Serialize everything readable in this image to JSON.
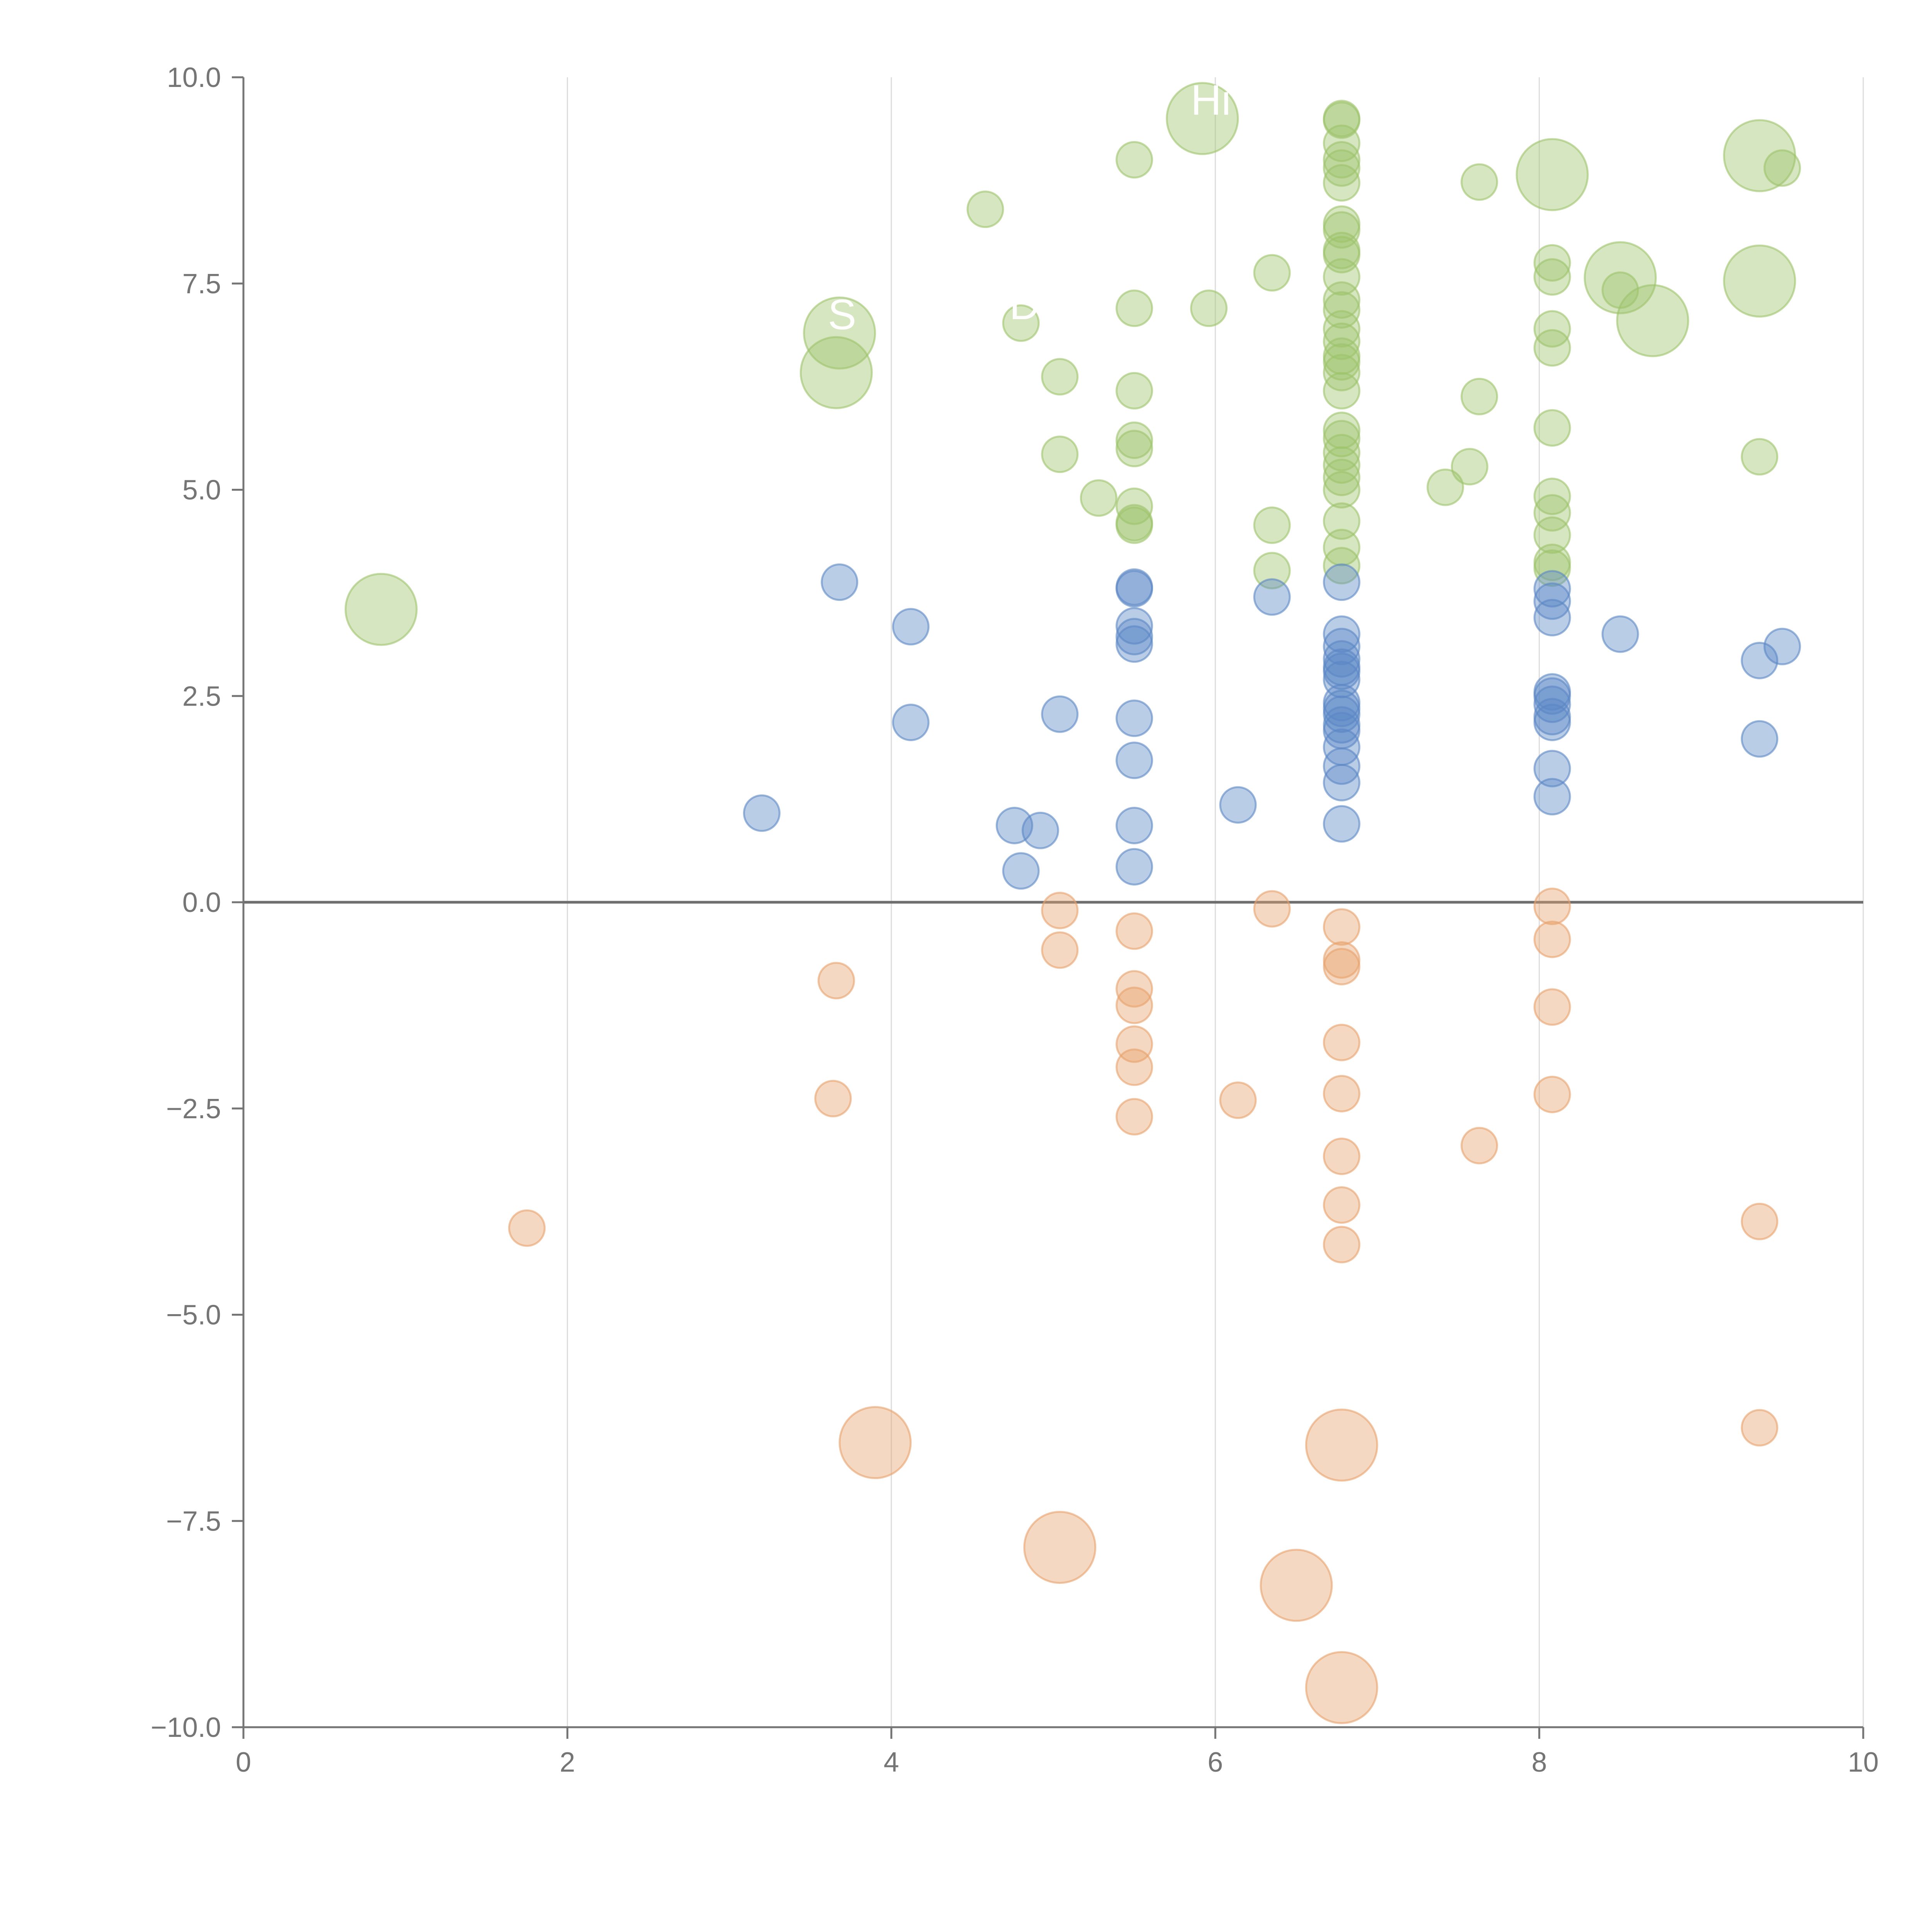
{
  "chart_data": {
    "type": "scatter",
    "subtype": "bubble",
    "title": "",
    "xlabel": "",
    "ylabel": "",
    "xlim": [
      0,
      10
    ],
    "ylim": [
      -10,
      10
    ],
    "x_ticks": [
      "0",
      "2",
      "4",
      "6",
      "8",
      "10"
    ],
    "y_ticks": [
      "−10.0",
      "−7.5",
      "−5.0",
      "−2.5",
      "0.0",
      "2.5",
      "5.0",
      "7.5",
      "10.0"
    ],
    "grid": "vertical",
    "legend": "none",
    "series": [
      {
        "name": "green",
        "color": "#9dc36b",
        "points": [
          [
            0.85,
            3.55,
            4
          ],
          [
            3.68,
            6.9,
            4
          ],
          [
            3.66,
            6.42,
            4
          ],
          [
            5.92,
            9.5,
            4
          ],
          [
            8.08,
            8.82,
            4
          ],
          [
            9.36,
            9.05,
            4
          ],
          [
            8.5,
            7.57,
            4
          ],
          [
            8.7,
            7.05,
            4
          ],
          [
            9.36,
            7.53,
            4
          ],
          [
            4.58,
            8.4,
            1
          ],
          [
            4.8,
            7.02,
            1
          ],
          [
            5.5,
            9.0,
            1
          ],
          [
            5.5,
            7.2,
            1
          ],
          [
            5.96,
            7.2,
            1
          ],
          [
            5.04,
            6.37,
            1
          ],
          [
            5.5,
            6.2,
            1
          ],
          [
            5.5,
            5.6,
            1
          ],
          [
            5.5,
            5.5,
            1
          ],
          [
            5.04,
            5.43,
            1
          ],
          [
            5.28,
            4.9,
            1
          ],
          [
            5.5,
            4.8,
            1
          ],
          [
            5.5,
            4.6,
            1
          ],
          [
            5.5,
            4.57,
            1
          ],
          [
            6.35,
            7.63,
            1
          ],
          [
            6.35,
            4.57,
            1
          ],
          [
            6.35,
            4.02,
            1
          ],
          [
            6.78,
            9.5,
            1
          ],
          [
            6.78,
            9.48,
            1
          ],
          [
            6.78,
            9.2,
            1
          ],
          [
            6.78,
            9.0,
            1
          ],
          [
            6.78,
            8.9,
            1
          ],
          [
            6.78,
            8.72,
            1
          ],
          [
            6.78,
            8.22,
            1
          ],
          [
            6.78,
            8.15,
            1
          ],
          [
            6.78,
            7.9,
            1
          ],
          [
            6.78,
            7.85,
            1
          ],
          [
            6.78,
            7.58,
            1
          ],
          [
            6.78,
            7.3,
            1
          ],
          [
            6.78,
            7.18,
            1
          ],
          [
            6.78,
            6.95,
            1
          ],
          [
            6.78,
            6.8,
            1
          ],
          [
            6.78,
            6.62,
            1
          ],
          [
            6.78,
            6.55,
            1
          ],
          [
            6.78,
            6.42,
            1
          ],
          [
            6.78,
            6.2,
            1
          ],
          [
            6.78,
            5.72,
            1
          ],
          [
            6.78,
            5.62,
            1
          ],
          [
            6.78,
            5.45,
            1
          ],
          [
            6.78,
            5.3,
            1
          ],
          [
            6.78,
            5.15,
            1
          ],
          [
            6.78,
            5.0,
            1
          ],
          [
            6.78,
            4.62,
            1
          ],
          [
            6.78,
            4.3,
            1
          ],
          [
            6.78,
            4.08,
            1
          ],
          [
            7.42,
            5.03,
            1
          ],
          [
            7.57,
            5.28,
            1
          ],
          [
            7.63,
            8.73,
            1
          ],
          [
            7.63,
            6.13,
            1
          ],
          [
            8.08,
            7.75,
            1
          ],
          [
            8.08,
            7.58,
            1
          ],
          [
            8.08,
            6.95,
            1
          ],
          [
            8.08,
            6.72,
            1
          ],
          [
            8.08,
            5.75,
            1
          ],
          [
            8.08,
            4.92,
            1
          ],
          [
            8.08,
            4.72,
            1
          ],
          [
            8.08,
            4.45,
            1
          ],
          [
            8.08,
            4.12,
            1
          ],
          [
            8.08,
            4.05,
            1
          ],
          [
            8.5,
            7.42,
            1
          ],
          [
            9.36,
            5.4,
            1
          ],
          [
            9.5,
            8.9,
            1
          ]
        ]
      },
      {
        "name": "blue",
        "color": "#5b87c5",
        "points": [
          [
            3.68,
            3.88,
            1
          ],
          [
            4.12,
            3.34,
            1
          ],
          [
            4.12,
            2.18,
            1
          ],
          [
            3.2,
            1.08,
            1
          ],
          [
            4.76,
            0.93,
            1
          ],
          [
            4.92,
            0.87,
            1
          ],
          [
            4.8,
            0.38,
            1
          ],
          [
            5.04,
            2.28,
            1
          ],
          [
            5.5,
            3.82,
            1
          ],
          [
            5.5,
            3.8,
            1
          ],
          [
            5.5,
            3.35,
            1
          ],
          [
            5.5,
            3.22,
            1
          ],
          [
            5.5,
            3.13,
            1
          ],
          [
            5.5,
            2.23,
            1
          ],
          [
            5.5,
            1.72,
            1
          ],
          [
            5.5,
            0.93,
            1
          ],
          [
            5.5,
            0.43,
            1
          ],
          [
            6.14,
            1.18,
            1
          ],
          [
            6.35,
            3.7,
            1
          ],
          [
            6.78,
            3.88,
            1
          ],
          [
            6.78,
            3.25,
            1
          ],
          [
            6.78,
            3.1,
            1
          ],
          [
            6.78,
            2.95,
            1
          ],
          [
            6.78,
            2.85,
            1
          ],
          [
            6.78,
            2.8,
            1
          ],
          [
            6.78,
            2.7,
            1
          ],
          [
            6.78,
            2.42,
            1
          ],
          [
            6.78,
            2.35,
            1
          ],
          [
            6.78,
            2.28,
            1
          ],
          [
            6.78,
            2.15,
            1
          ],
          [
            6.78,
            2.08,
            1
          ],
          [
            6.78,
            1.88,
            1
          ],
          [
            6.78,
            1.65,
            1
          ],
          [
            6.78,
            1.45,
            1
          ],
          [
            6.78,
            0.95,
            1
          ],
          [
            8.08,
            3.8,
            1
          ],
          [
            8.08,
            3.65,
            1
          ],
          [
            8.08,
            3.45,
            1
          ],
          [
            8.08,
            2.55,
            1
          ],
          [
            8.08,
            2.5,
            1
          ],
          [
            8.08,
            2.4,
            1
          ],
          [
            8.08,
            2.25,
            1
          ],
          [
            8.08,
            2.18,
            1
          ],
          [
            8.08,
            1.62,
            1
          ],
          [
            8.08,
            1.28,
            1
          ],
          [
            8.5,
            3.25,
            1
          ],
          [
            9.36,
            2.93,
            1
          ],
          [
            9.36,
            1.98,
            1
          ],
          [
            9.5,
            3.1,
            1
          ]
        ]
      },
      {
        "name": "orange",
        "color": "#e8a26c",
        "points": [
          [
            3.9,
            -6.55,
            4
          ],
          [
            5.04,
            -7.82,
            4
          ],
          [
            6.5,
            -8.28,
            4
          ],
          [
            6.78,
            -6.58,
            4
          ],
          [
            6.78,
            -9.52,
            4
          ],
          [
            1.75,
            -3.95,
            1
          ],
          [
            3.66,
            -0.95,
            1
          ],
          [
            3.64,
            -2.38,
            1
          ],
          [
            5.04,
            -0.1,
            1
          ],
          [
            5.04,
            -0.58,
            1
          ],
          [
            5.5,
            -0.35,
            1
          ],
          [
            5.5,
            -1.05,
            1
          ],
          [
            5.5,
            -1.25,
            1
          ],
          [
            5.5,
            -1.72,
            1
          ],
          [
            5.5,
            -2.0,
            1
          ],
          [
            5.5,
            -2.6,
            1
          ],
          [
            6.14,
            -2.4,
            1
          ],
          [
            6.35,
            -0.08,
            1
          ],
          [
            6.78,
            -0.3,
            1
          ],
          [
            6.78,
            -0.7,
            1
          ],
          [
            6.78,
            -0.78,
            1
          ],
          [
            6.78,
            -1.7,
            1
          ],
          [
            6.78,
            -2.32,
            1
          ],
          [
            6.78,
            -3.08,
            1
          ],
          [
            6.78,
            -3.67,
            1
          ],
          [
            6.78,
            -4.15,
            1
          ],
          [
            7.63,
            -2.95,
            1
          ],
          [
            8.08,
            -0.05,
            1
          ],
          [
            8.08,
            -0.45,
            1
          ],
          [
            8.08,
            -1.27,
            1
          ],
          [
            8.08,
            -2.33,
            1
          ],
          [
            9.36,
            -3.87,
            1
          ],
          [
            9.36,
            -6.37,
            1
          ]
        ]
      }
    ],
    "annotations": [
      {
        "text": "Hi",
        "x": 5.92,
        "y": 9.5
      },
      {
        "text": "S",
        "x": 3.68,
        "y": 6.9
      },
      {
        "text": "D",
        "x": 4.8,
        "y": 7.02
      }
    ]
  }
}
